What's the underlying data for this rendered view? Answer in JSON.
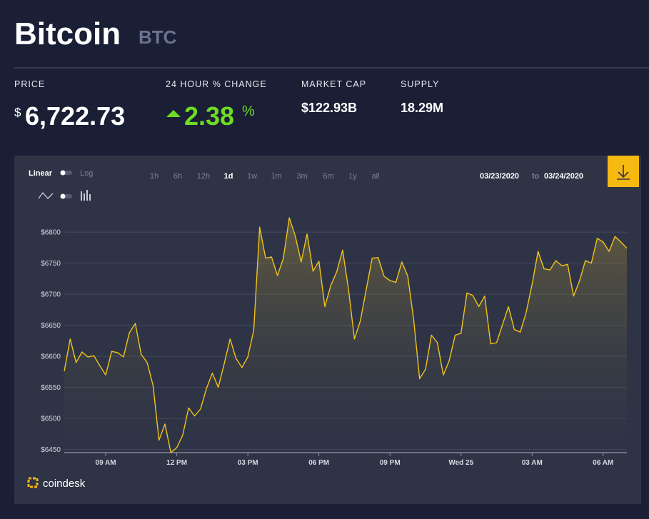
{
  "header": {
    "title": "Bitcoin",
    "symbol": "BTC"
  },
  "stats": {
    "price": {
      "label": "PRICE",
      "currency": "$",
      "value": "6,722.73"
    },
    "change": {
      "label": "24 HOUR % CHANGE",
      "value": "2.38",
      "unit": "%"
    },
    "market_cap": {
      "label": "MARKET CAP",
      "value": "$122.93B"
    },
    "supply": {
      "label": "SUPPLY",
      "value": "18.29M"
    }
  },
  "controls": {
    "scale_linear": "Linear",
    "scale_log": "Log",
    "ranges": [
      "1h",
      "6h",
      "12h",
      "1d",
      "1w",
      "1m",
      "3m",
      "6m",
      "1y",
      "all"
    ],
    "active_range": "1d",
    "date_from": "03/23/2020",
    "date_sep": "to",
    "date_to": "03/24/2020"
  },
  "brand": "coindesk",
  "chart_data": {
    "type": "line",
    "color": "#f2c318",
    "x": [
      7.25,
      7.5,
      7.75,
      8,
      8.25,
      8.5,
      8.75,
      9,
      9.25,
      9.5,
      9.75,
      10,
      10.25,
      10.5,
      10.75,
      11,
      11.25,
      11.5,
      11.75,
      12,
      12.25,
      12.5,
      12.75,
      13,
      13.25,
      13.5,
      13.75,
      14,
      14.25,
      14.5,
      14.75,
      15,
      15.25,
      15.5,
      15.75,
      16,
      16.25,
      16.5,
      16.75,
      17,
      17.25,
      17.5,
      17.75,
      18,
      18.25,
      18.5,
      18.75,
      19,
      19.25,
      19.5,
      19.75,
      20,
      20.25,
      20.5,
      20.75,
      21,
      21.25,
      21.5,
      21.75,
      22,
      22.25,
      22.5,
      22.75,
      23,
      23.25,
      23.5,
      23.75,
      24,
      24.25,
      24.5,
      24.75,
      25,
      25.25,
      25.5,
      25.75,
      26,
      26.25,
      26.5,
      26.75,
      27,
      27.25,
      27.5,
      27.75,
      28,
      28.25,
      28.5,
      28.75,
      29,
      29.25,
      29.5,
      29.75,
      30,
      30.25,
      30.5,
      30.75,
      31
    ],
    "values": [
      6576,
      6628,
      6590,
      6607,
      6599,
      6601,
      6585,
      6570,
      6608,
      6606,
      6599,
      6638,
      6653,
      6603,
      6590,
      6553,
      6465,
      6491,
      6445,
      6453,
      6473,
      6517,
      6504,
      6515,
      6548,
      6573,
      6550,
      6588,
      6628,
      6597,
      6582,
      6599,
      6642,
      6808,
      6758,
      6760,
      6730,
      6758,
      6823,
      6794,
      6752,
      6797,
      6737,
      6753,
      6680,
      6714,
      6736,
      6771,
      6708,
      6628,
      6657,
      6708,
      6758,
      6759,
      6729,
      6722,
      6719,
      6752,
      6729,
      6659,
      6564,
      6579,
      6634,
      6622,
      6570,
      6593,
      6634,
      6637,
      6702,
      6698,
      6680,
      6697,
      6620,
      6622,
      6651,
      6680,
      6643,
      6639,
      6671,
      6716,
      6769,
      6741,
      6739,
      6754,
      6746,
      6748,
      6697,
      6721,
      6754,
      6750,
      6790,
      6784,
      6769,
      6793,
      6784,
      6774
    ],
    "xlim": [
      7.25,
      31
    ],
    "xticks": [
      {
        "value": 9,
        "label": "09 AM"
      },
      {
        "value": 12,
        "label": "12 PM"
      },
      {
        "value": 15,
        "label": "03 PM"
      },
      {
        "value": 18,
        "label": "06 PM"
      },
      {
        "value": 21,
        "label": "09 PM"
      },
      {
        "value": 24,
        "label": "Wed 25"
      },
      {
        "value": 27,
        "label": "03 AM"
      },
      {
        "value": 30,
        "label": "06 AM"
      }
    ],
    "ylim": [
      6445,
      6830
    ],
    "yticks": [
      {
        "value": 6450,
        "label": "$6450"
      },
      {
        "value": 6500,
        "label": "$6500"
      },
      {
        "value": 6550,
        "label": "$6550"
      },
      {
        "value": 6600,
        "label": "$6600"
      },
      {
        "value": 6650,
        "label": "$6650"
      },
      {
        "value": 6700,
        "label": "$6700"
      },
      {
        "value": 6750,
        "label": "$6750"
      },
      {
        "value": 6800,
        "label": "$6800"
      }
    ],
    "grid": true
  }
}
